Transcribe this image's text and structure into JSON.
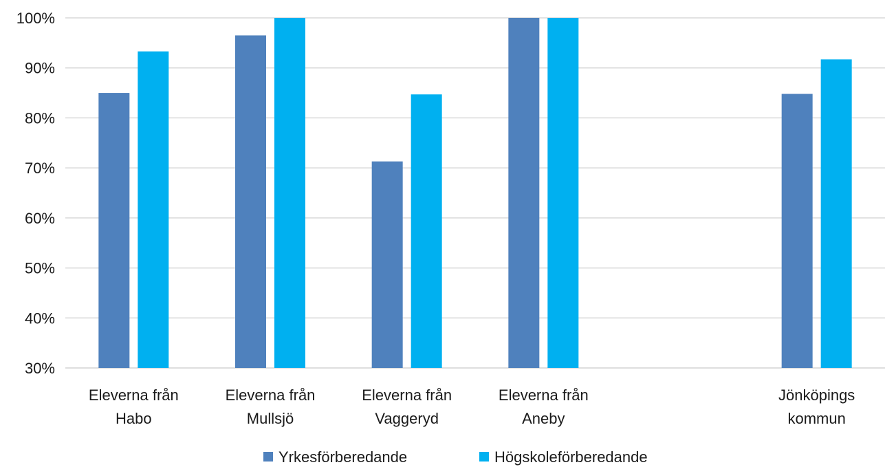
{
  "chart_data": {
    "type": "bar",
    "title": "",
    "xlabel": "",
    "ylabel": "",
    "ylim": [
      0.3,
      1.0
    ],
    "y_ticks": [
      "30%",
      "40%",
      "50%",
      "60%",
      "70%",
      "80%",
      "90%",
      "100%"
    ],
    "y_tick_values": [
      0.3,
      0.4,
      0.5,
      0.6,
      0.7,
      0.8,
      0.9,
      1.0
    ],
    "grid": true,
    "legend_position": "bottom",
    "categories": [
      [
        "Eleverna från",
        "Habo"
      ],
      [
        "Eleverna från",
        "Mullsjö"
      ],
      [
        "Eleverna från",
        "Vaggeryd"
      ],
      [
        "Eleverna från",
        "Aneby"
      ],
      [
        "",
        ""
      ],
      [
        "Jönköpings",
        "kommun"
      ]
    ],
    "series": [
      {
        "name": "Yrkesförberedande",
        "color": "#4F81BD",
        "values": [
          0.85,
          0.965,
          0.713,
          1.0,
          null,
          0.848
        ]
      },
      {
        "name": "Högskoleförberedande",
        "color": "#00B0F0",
        "values": [
          0.933,
          1.0,
          0.847,
          1.0,
          null,
          0.917
        ]
      }
    ]
  }
}
